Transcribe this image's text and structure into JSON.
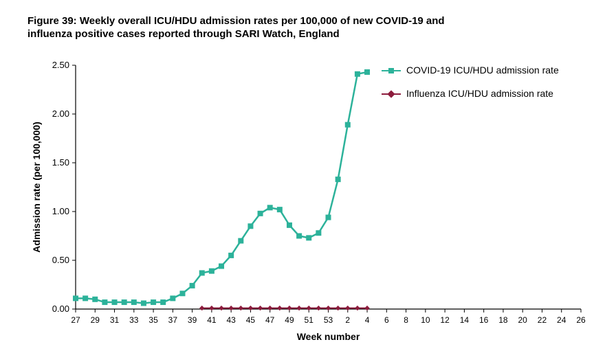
{
  "title": "Figure 39: Weekly overall ICU/HDU admission rates per 100,000 of new COVID-19 and influenza positive cases reported through SARI Watch, England",
  "chart": {
    "type": "line",
    "background_color": "#ffffff",
    "axis_color": "#000000",
    "axis_stroke_width": 1.2,
    "y": {
      "label": "Admission rate (per 100,000)",
      "label_fontsize": 14,
      "label_fontweight": "bold",
      "min": 0.0,
      "max": 2.5,
      "tick_step": 0.5,
      "ticks": [
        0.0,
        0.5,
        1.0,
        1.5,
        2.0,
        2.5
      ],
      "tick_labels": [
        "0.00",
        "0.50",
        "1.00",
        "1.50",
        "2.00",
        "2.50"
      ],
      "tick_fontsize": 13
    },
    "x": {
      "label": "Week number",
      "label_fontsize": 14,
      "label_fontweight": "bold",
      "full_weeks": [
        "27",
        "28",
        "29",
        "30",
        "31",
        "32",
        "33",
        "34",
        "35",
        "36",
        "37",
        "38",
        "39",
        "40",
        "41",
        "42",
        "43",
        "44",
        "45",
        "46",
        "47",
        "48",
        "49",
        "50",
        "51",
        "52",
        "53",
        "1",
        "2",
        "3",
        "4",
        "5",
        "6",
        "7",
        "8",
        "9",
        "10",
        "11",
        "12",
        "13",
        "14",
        "15",
        "16",
        "17",
        "18",
        "19",
        "20",
        "21",
        "22",
        "23",
        "24",
        "25",
        "26"
      ],
      "tick_labels": [
        "27",
        "29",
        "31",
        "33",
        "35",
        "37",
        "39",
        "41",
        "43",
        "45",
        "47",
        "49",
        "51",
        "53",
        "2",
        "4",
        "6",
        "8",
        "10",
        "12",
        "14",
        "16",
        "18",
        "20",
        "22",
        "24",
        "26"
      ],
      "tick_indices": [
        0,
        2,
        4,
        6,
        8,
        10,
        12,
        14,
        16,
        18,
        20,
        22,
        24,
        26,
        28,
        30,
        32,
        34,
        36,
        38,
        40,
        42,
        44,
        46,
        48,
        50,
        52
      ],
      "tick_fontsize": 12
    },
    "series": [
      {
        "name": "COVID-19 ICU/HDU admission rate",
        "color": "#2cb29a",
        "line_width": 2.5,
        "marker": "square",
        "marker_size": 7,
        "data": [
          {
            "week": "27",
            "value": 0.11
          },
          {
            "week": "28",
            "value": 0.11
          },
          {
            "week": "29",
            "value": 0.1
          },
          {
            "week": "30",
            "value": 0.07
          },
          {
            "week": "31",
            "value": 0.07
          },
          {
            "week": "32",
            "value": 0.07
          },
          {
            "week": "33",
            "value": 0.07
          },
          {
            "week": "34",
            "value": 0.06
          },
          {
            "week": "35",
            "value": 0.07
          },
          {
            "week": "36",
            "value": 0.07
          },
          {
            "week": "37",
            "value": 0.11
          },
          {
            "week": "38",
            "value": 0.16
          },
          {
            "week": "39",
            "value": 0.24
          },
          {
            "week": "40",
            "value": 0.37
          },
          {
            "week": "41",
            "value": 0.39
          },
          {
            "week": "42",
            "value": 0.44
          },
          {
            "week": "43",
            "value": 0.55
          },
          {
            "week": "44",
            "value": 0.7
          },
          {
            "week": "45",
            "value": 0.85
          },
          {
            "week": "46",
            "value": 0.98
          },
          {
            "week": "47",
            "value": 1.04
          },
          {
            "week": "48",
            "value": 1.02
          },
          {
            "week": "49",
            "value": 0.86
          },
          {
            "week": "50",
            "value": 0.75
          },
          {
            "week": "51",
            "value": 0.73
          },
          {
            "week": "52",
            "value": 0.78
          },
          {
            "week": "53",
            "value": 0.94
          },
          {
            "week": "1",
            "value": 1.33
          },
          {
            "week": "2",
            "value": 1.89
          },
          {
            "week": "3",
            "value": 2.41
          },
          {
            "week": "4",
            "value": 2.43
          }
        ]
      },
      {
        "name": "Influenza ICU/HDU admission rate",
        "color": "#8d1c3d",
        "line_width": 2,
        "marker": "diamond",
        "marker_size": 6,
        "data": [
          {
            "week": "40",
            "value": 0.01
          },
          {
            "week": "41",
            "value": 0.01
          },
          {
            "week": "42",
            "value": 0.01
          },
          {
            "week": "43",
            "value": 0.01
          },
          {
            "week": "44",
            "value": 0.01
          },
          {
            "week": "45",
            "value": 0.01
          },
          {
            "week": "46",
            "value": 0.01
          },
          {
            "week": "47",
            "value": 0.01
          },
          {
            "week": "48",
            "value": 0.01
          },
          {
            "week": "49",
            "value": 0.01
          },
          {
            "week": "50",
            "value": 0.01
          },
          {
            "week": "51",
            "value": 0.01
          },
          {
            "week": "52",
            "value": 0.01
          },
          {
            "week": "53",
            "value": 0.01
          },
          {
            "week": "1",
            "value": 0.01
          },
          {
            "week": "2",
            "value": 0.01
          },
          {
            "week": "3",
            "value": 0.01
          },
          {
            "week": "4",
            "value": 0.01
          }
        ]
      }
    ],
    "legend": {
      "position": "right-top",
      "fontsize": 14,
      "items": [
        {
          "label": "COVID-19 ICU/HDU admission rate",
          "color": "#2cb29a",
          "marker": "square"
        },
        {
          "label": "Influenza ICU/HDU admission rate",
          "color": "#8d1c3d",
          "marker": "diamond"
        }
      ]
    }
  }
}
